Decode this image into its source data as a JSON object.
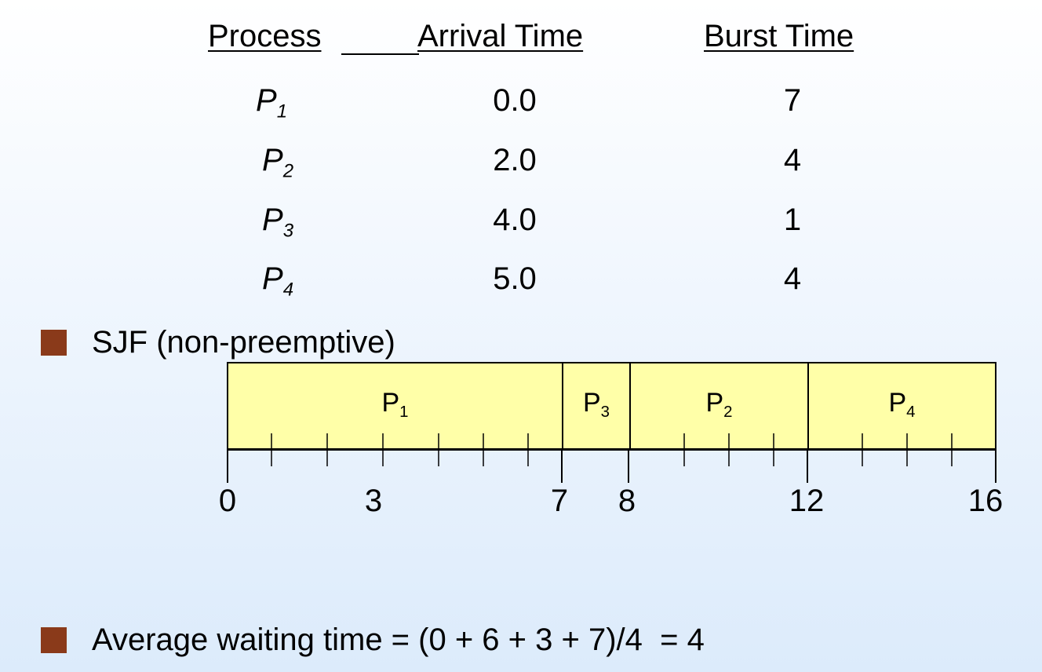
{
  "table": {
    "headers": {
      "process": "Process",
      "arrival": "Arrival Time",
      "burst": "Burst Time"
    },
    "rows": [
      {
        "name": "P",
        "sub": "1",
        "arrival": "0.0",
        "burst": "7"
      },
      {
        "name": "P",
        "sub": "2",
        "arrival": "2.0",
        "burst": "4"
      },
      {
        "name": "P",
        "sub": "3",
        "arrival": "4.0",
        "burst": "1"
      },
      {
        "name": "P",
        "sub": "4",
        "arrival": "5.0",
        "burst": "4"
      }
    ]
  },
  "bullets": {
    "sjf": "SJF (non-preemptive)",
    "average": "Average waiting time = (0 + 6 + 3 + 7)/4  = 4"
  },
  "gantt": {
    "start": 0,
    "end": 16,
    "blocks": [
      {
        "name": "P",
        "sub": "1",
        "start": 0,
        "end": 7
      },
      {
        "name": "P",
        "sub": "3",
        "start": 7,
        "end": 8
      },
      {
        "name": "P",
        "sub": "2",
        "start": 8,
        "end": 12
      },
      {
        "name": "P",
        "sub": "4",
        "start": 12,
        "end": 16
      }
    ],
    "tick_labels": [
      "0",
      "3",
      "7",
      "8",
      "12",
      "16"
    ]
  },
  "colors": {
    "bullet": "#8a3a1a",
    "gantt_fill": "#ffffa8"
  }
}
